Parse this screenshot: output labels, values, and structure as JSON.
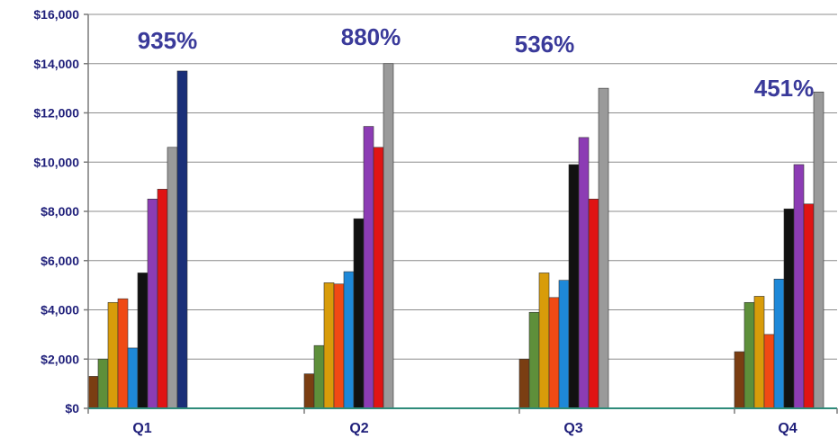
{
  "chart_data": {
    "type": "bar",
    "title": "",
    "xlabel": "",
    "ylabel": "",
    "ylim": [
      0,
      16000
    ],
    "yticks": [
      0,
      2000,
      4000,
      6000,
      8000,
      10000,
      12000,
      14000,
      16000
    ],
    "ytick_labels": [
      "$0",
      "$2,000",
      "$4,000",
      "$6,000",
      "$8,000",
      "$10,000",
      "$12,000",
      "$14,000",
      "$16,000"
    ],
    "grid": true,
    "legend": "none",
    "categories": [
      "Q1",
      "Q2",
      "Q3",
      "Q4"
    ],
    "series": [
      {
        "color": "#7a3e12",
        "values": [
          1300,
          1400,
          2000,
          2300
        ]
      },
      {
        "color": "#5e8f3a",
        "values": [
          2000,
          2550,
          3900,
          4300
        ]
      },
      {
        "color": "#d89c0a",
        "values": [
          4300,
          5100,
          5500,
          4550
        ]
      },
      {
        "color": "#f04a14",
        "values": [
          4450,
          5050,
          4500,
          3000
        ]
      },
      {
        "color": "#1e88d8",
        "values": [
          2450,
          5550,
          5200,
          5250
        ]
      },
      {
        "color": "#111111",
        "values": [
          5500,
          7700,
          9900,
          8100
        ]
      },
      {
        "color": "#8c3cb4",
        "values": [
          8500,
          11450,
          11000,
          9900
        ]
      },
      {
        "color": "#e01414",
        "values": [
          8900,
          10600,
          8500,
          8300
        ]
      },
      {
        "color": "#9a9a9a",
        "values": [
          10600,
          14000,
          13000,
          12850
        ]
      },
      {
        "color": "#1a2f78",
        "values": [
          13700,
          null,
          null,
          null
        ]
      }
    ],
    "annotations": [
      "935%",
      "880%",
      "536%",
      "451%"
    ]
  }
}
